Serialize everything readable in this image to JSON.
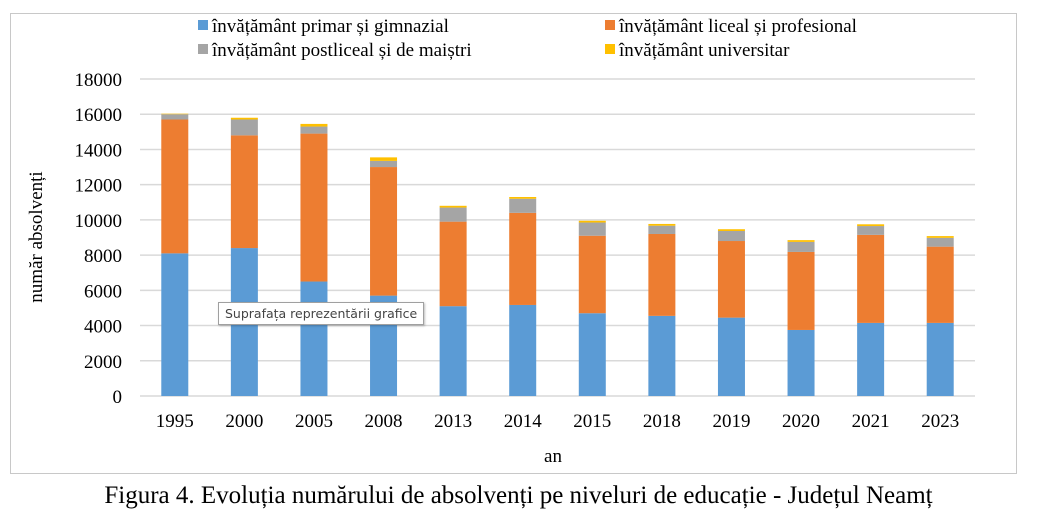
{
  "chart_data": {
    "type": "bar",
    "stacked": true,
    "xlabel": "an",
    "ylabel": "număr absolvenți",
    "ylim": [
      0,
      18000
    ],
    "yticks": [
      0,
      2000,
      4000,
      6000,
      8000,
      10000,
      12000,
      14000,
      16000,
      18000
    ],
    "grid": true,
    "legend_position": "top",
    "categories": [
      "1995",
      "2000",
      "2005",
      "2008",
      "2013",
      "2014",
      "2015",
      "2018",
      "2019",
      "2020",
      "2021",
      "2023"
    ],
    "series": [
      {
        "name": "învățământ primar și gimnazial",
        "color": "#5b9bd5",
        "values": [
          8100,
          8400,
          6500,
          5700,
          5100,
          5170,
          4700,
          4550,
          4450,
          3750,
          4150,
          4150
        ]
      },
      {
        "name": "învățământ liceal și profesional",
        "color": "#ed7d31",
        "values": [
          7600,
          6400,
          8400,
          7300,
          4800,
          5230,
          4400,
          4650,
          4350,
          4430,
          5000,
          4330
        ]
      },
      {
        "name": "învățământ postliceal și de maiștri",
        "color": "#a5a5a5",
        "values": [
          300,
          900,
          400,
          350,
          800,
          800,
          750,
          470,
          570,
          570,
          500,
          500
        ]
      },
      {
        "name": "învățământ universitar",
        "color": "#ffc000",
        "values": [
          30,
          100,
          150,
          200,
          100,
          100,
          100,
          100,
          100,
          100,
          100,
          100
        ]
      }
    ]
  },
  "tooltip": "Suprafața reprezentării grafice",
  "caption": "Figura 4. Evoluția numărului de absolvenți pe niveluri de educație  - Județul Neamț"
}
